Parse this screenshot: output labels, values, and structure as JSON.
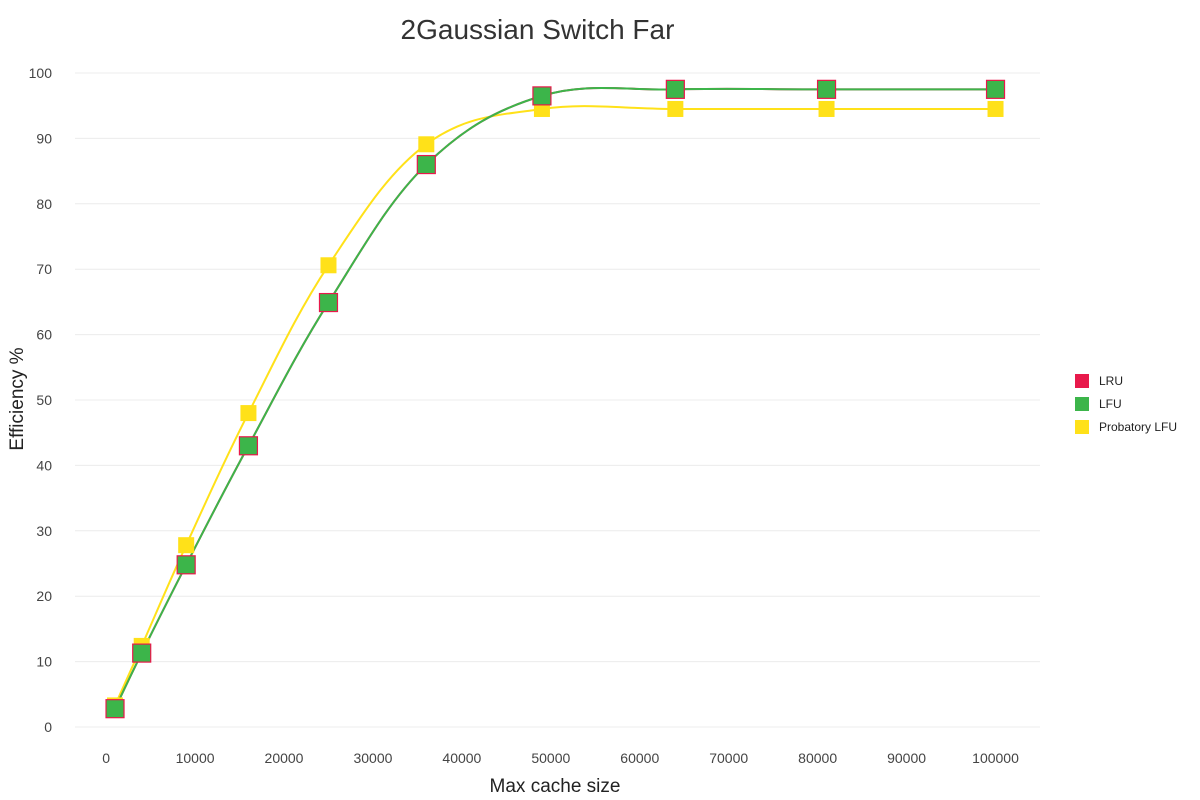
{
  "chart_data": {
    "type": "line",
    "title": "2Gaussian Switch Far",
    "xlabel": "Max cache size",
    "ylabel": "Efficiency %",
    "xlim": [
      -3500,
      105000
    ],
    "ylim": [
      0,
      100
    ],
    "x_ticks": [
      0,
      10000,
      20000,
      30000,
      40000,
      50000,
      60000,
      70000,
      80000,
      90000,
      100000
    ],
    "y_ticks": [
      0,
      10,
      20,
      30,
      40,
      50,
      60,
      70,
      80,
      90,
      100
    ],
    "grid": true,
    "legend_position": "right",
    "x": [
      1000,
      4000,
      9000,
      16000,
      25000,
      36000,
      49000,
      64000,
      81000,
      100000
    ],
    "series": [
      {
        "name": "LRU",
        "color": "#e8194b",
        "values": [
          2.8,
          11.3,
          24.8,
          43.0,
          64.9,
          86.0,
          96.5,
          97.5,
          97.5,
          97.5
        ]
      },
      {
        "name": "LFU",
        "color": "#3cb54a",
        "values": [
          2.8,
          11.3,
          24.8,
          43.0,
          64.9,
          86.0,
          96.5,
          97.5,
          97.5,
          97.5
        ]
      },
      {
        "name": "Probatory LFU",
        "color": "#ffe119",
        "values": [
          3.3,
          12.4,
          27.8,
          48.0,
          70.6,
          89.1,
          94.5,
          94.5,
          94.5,
          94.5
        ]
      }
    ]
  }
}
